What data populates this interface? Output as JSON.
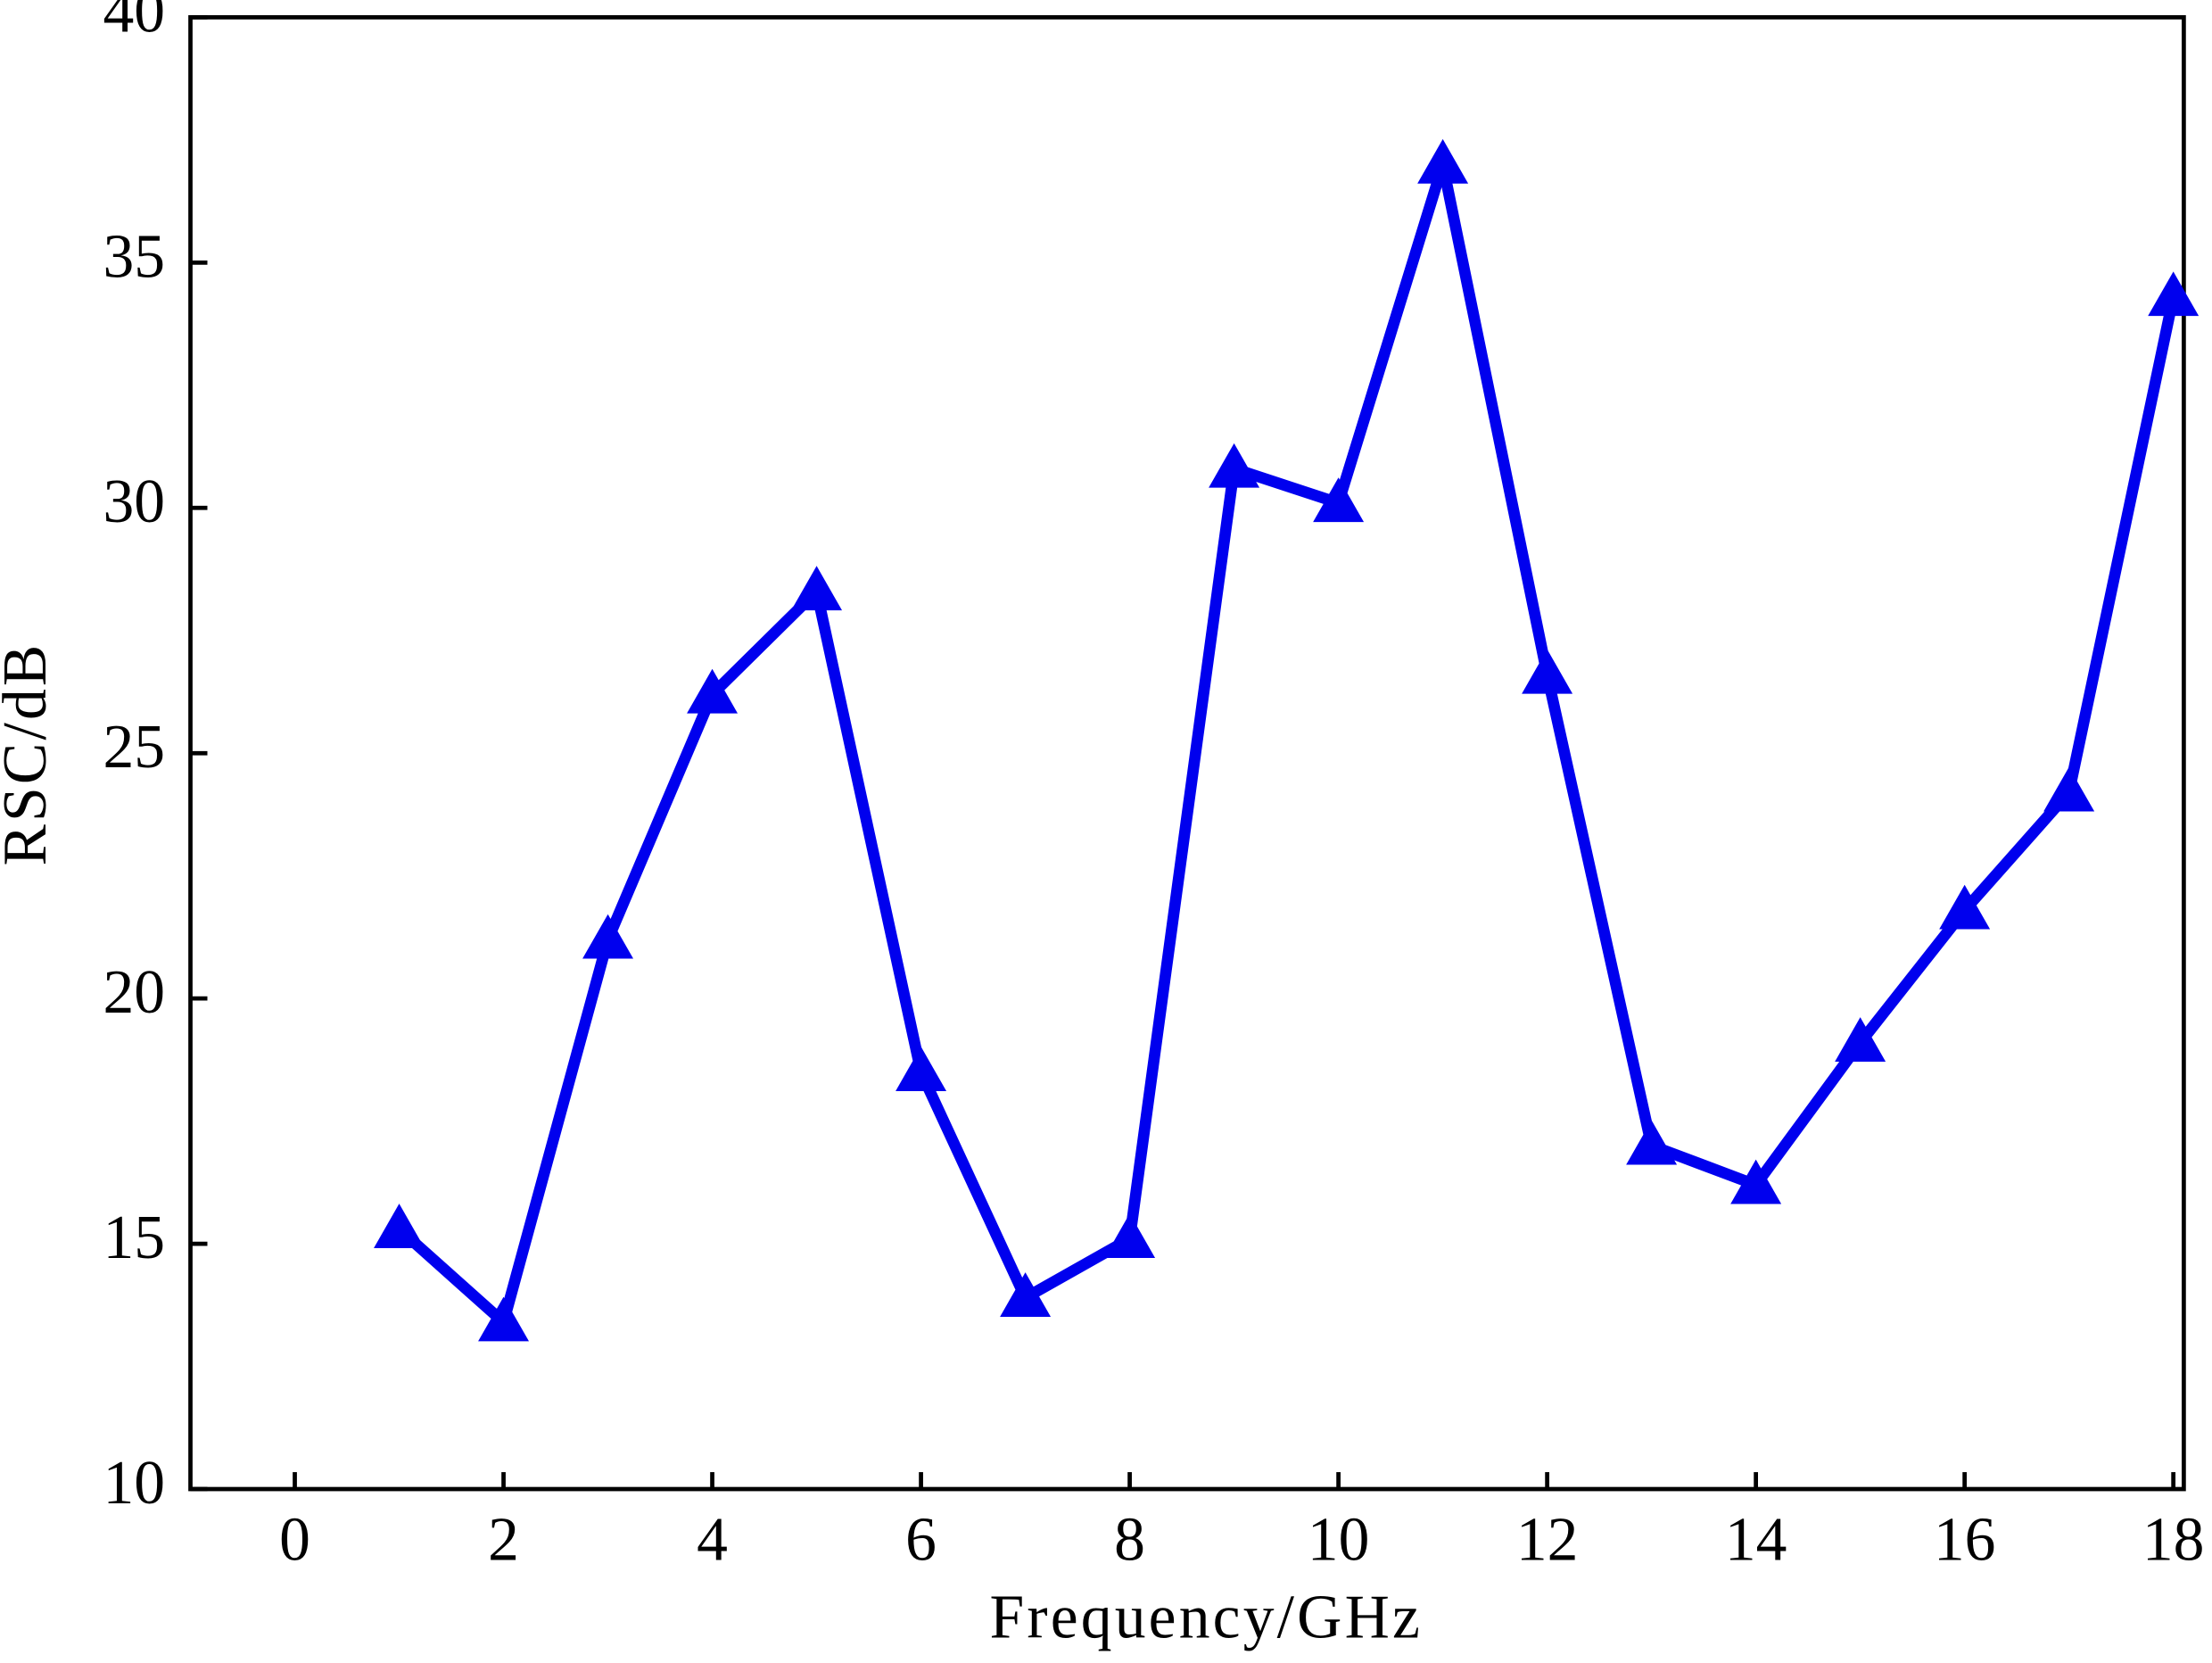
{
  "chart_data": {
    "type": "line",
    "x_label": "Frequency/GHz",
    "y_label": "RSC/dB",
    "x": [
      1,
      2,
      3,
      4,
      5,
      6,
      7,
      8,
      9,
      10,
      11,
      12,
      13,
      14,
      15,
      16,
      17,
      18
    ],
    "values": [
      15.3,
      13.4,
      21.2,
      26.2,
      28.3,
      18.5,
      13.9,
      15.1,
      30.8,
      30.1,
      37.0,
      26.6,
      17.0,
      16.2,
      19.1,
      21.8,
      24.2,
      34.3
    ],
    "color": "#0000ee",
    "marker": "triangle",
    "xlim": [
      -1,
      18.1
    ],
    "xticks": [
      0,
      2,
      4,
      6,
      8,
      10,
      12,
      14,
      16,
      18
    ],
    "ylim": [
      10,
      40
    ],
    "yticks": [
      10,
      15,
      20,
      25,
      30,
      35,
      40
    ],
    "grid": false
  }
}
